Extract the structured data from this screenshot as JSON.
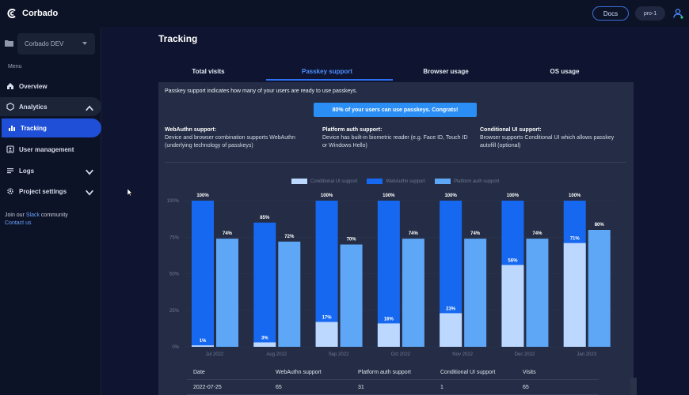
{
  "app": {
    "name": "Corbado",
    "docs_label": "Docs",
    "project_pill": "pro-1"
  },
  "sidebar": {
    "project_name": "Corbado DEV",
    "menu_label": "Menu",
    "items": [
      {
        "label": "Overview",
        "icon": "home-icon"
      },
      {
        "label": "Analytics",
        "icon": "analytics-icon"
      },
      {
        "label": "Tracking",
        "icon": "bar-chart-icon"
      },
      {
        "label": "User management",
        "icon": "users-icon"
      },
      {
        "label": "Logs",
        "icon": "list-icon"
      },
      {
        "label": "Project settings",
        "icon": "gear-icon"
      }
    ],
    "community_text_1": "Join our ",
    "community_link": "Slack",
    "community_text_2": " community",
    "contact_link": "Contact us"
  },
  "main": {
    "title": "Tracking",
    "tabs": [
      "Total visits",
      "Passkey support",
      "Browser usage",
      "OS usage"
    ],
    "active_tab": "Passkey support",
    "intro": "Passkey support indicates how many of your users are ready to use passkeys.",
    "banner": "80% of your users can use passkeys. Congrats!",
    "info": [
      {
        "heading": "WebAuthn support:",
        "text": "Device and browser combination supports WebAuthn (underlying technology of passkeys)"
      },
      {
        "heading": "Platform auth support:",
        "text": "Device has built-in biometric reader (e.g. Face ID, Touch ID or Windows Hello)"
      },
      {
        "heading": "Conditional UI support:",
        "text": "Browser supports Conditional UI which allows passkey autofill (optional)"
      }
    ]
  },
  "colors": {
    "conditional": "#bcd8ff",
    "webauthn": "#1668f0",
    "platform": "#5ea6f6",
    "accent": "#2f6ff3"
  },
  "chart_data": {
    "type": "bar",
    "categories": [
      "Jul 2022",
      "Aug 2022",
      "Sep 2022",
      "Oct 2022",
      "Nov 2022",
      "Dec 2022",
      "Jan 2023"
    ],
    "y_ticks": [
      "0%",
      "25%",
      "50%",
      "75%",
      "100%"
    ],
    "ylim": [
      0,
      100
    ],
    "series": [
      {
        "name": "Conditional UI support",
        "values": [
          1,
          3,
          17,
          16,
          23,
          56,
          71
        ]
      },
      {
        "name": "WebAuthn support",
        "values": [
          100,
          85,
          100,
          100,
          100,
          100,
          100
        ]
      },
      {
        "name": "Platform auth support",
        "values": [
          74,
          72,
          70,
          74,
          74,
          74,
          80
        ]
      }
    ],
    "legend_position": "top-center",
    "stacked_overlay": "conditional drawn over webauthn"
  },
  "table": {
    "headers": [
      "Date",
      "WebAuthn support",
      "Platform auth support",
      "Conditional UI support",
      "Visits"
    ],
    "rows": [
      [
        "2022-07-25",
        "65",
        "31",
        "1",
        "65"
      ]
    ]
  }
}
